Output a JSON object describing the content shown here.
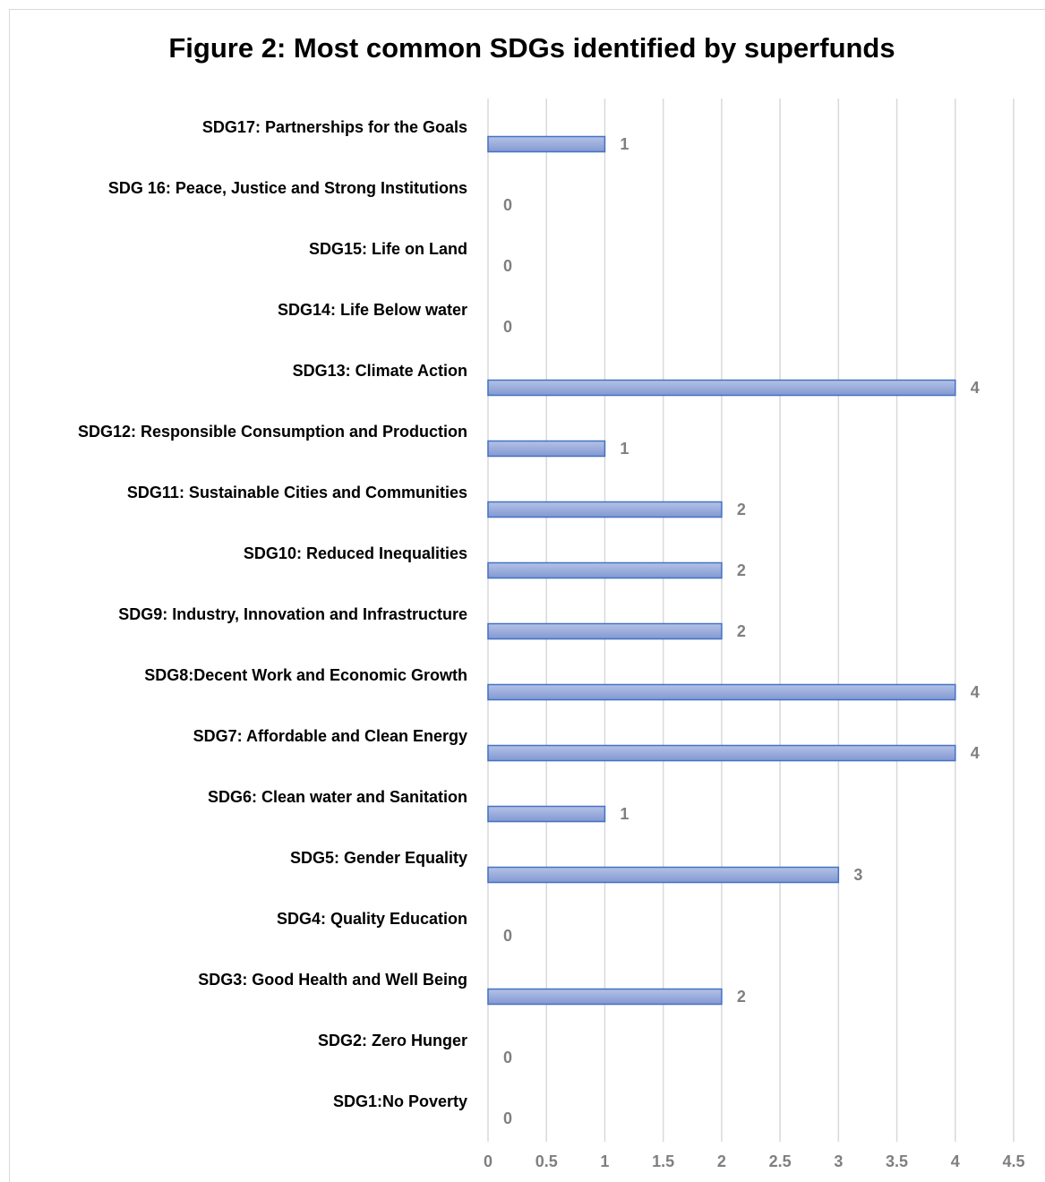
{
  "chart_data": {
    "type": "bar",
    "orientation": "horizontal",
    "title": "Figure 2: Most common SDGs identified by superfunds",
    "categories": [
      "SDG17: Partnerships for the Goals",
      "SDG 16: Peace, Justice and Strong Institutions",
      "SDG15: Life on Land",
      "SDG14: Life Below water",
      "SDG13: Climate Action",
      "SDG12: Responsible Consumption and Production",
      "SDG11: Sustainable Cities and Communities",
      "SDG10: Reduced Inequalities",
      "SDG9: Industry, Innovation and Infrastructure",
      "SDG8:Decent Work and Economic Growth",
      "SDG7: Affordable and Clean Energy",
      "SDG6: Clean water and Sanitation",
      "SDG5: Gender Equality",
      "SDG4: Quality Education",
      "SDG3: Good Health and Well Being",
      "SDG2: Zero Hunger",
      "SDG1:No Poverty"
    ],
    "values": [
      1,
      0,
      0,
      0,
      4,
      1,
      2,
      2,
      2,
      4,
      4,
      1,
      3,
      0,
      2,
      0,
      0
    ],
    "color": "#4472c4",
    "xlim": [
      0,
      4.5
    ],
    "xticks": [
      0,
      0.5,
      1,
      1.5,
      2,
      2.5,
      3,
      3.5,
      4,
      4.5
    ],
    "grid": true
  }
}
